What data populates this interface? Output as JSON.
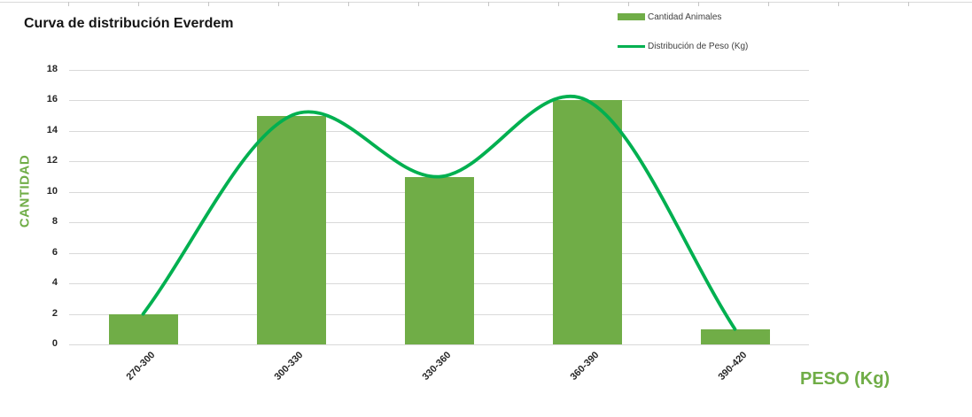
{
  "title": "Curva de distribución Everdem",
  "legend": {
    "items": [
      {
        "label": "Cantidad Animales",
        "swatch": "bar-swatch"
      },
      {
        "label": "Distribución de Peso (Kg)",
        "swatch": "line-swatch"
      }
    ]
  },
  "y_axis": {
    "title": "CANTIDAD",
    "ticks": [
      18,
      16,
      14,
      12,
      10,
      8,
      6,
      4,
      2,
      0
    ]
  },
  "x_axis": {
    "title": "PESO (Kg)"
  },
  "colors": {
    "bar": "#70AD47",
    "line": "#00B050",
    "axis_title": "#70AD47",
    "grid": "#D9D9D9",
    "title_text": "#151515",
    "tick_text": "#262626"
  },
  "chart_data": {
    "type": "bar",
    "subtype": "combo-bar-smooth-line",
    "title": "Curva de distribución Everdem",
    "categories": [
      "270-300",
      "300-330",
      "330-360",
      "360-390",
      "390-420"
    ],
    "series": [
      {
        "name": "Cantidad Animales",
        "type": "bar",
        "values": [
          2,
          15,
          11,
          16,
          1
        ]
      },
      {
        "name": "Distribución de Peso (Kg)",
        "type": "line",
        "values": [
          2,
          15,
          11,
          16,
          1
        ]
      }
    ],
    "xlabel": "PESO (Kg)",
    "ylabel": "CANTIDAD",
    "ylim": [
      0,
      18
    ],
    "ytick_step": 2,
    "grid": true,
    "legend_position": "top-right",
    "line_smooth": true
  }
}
